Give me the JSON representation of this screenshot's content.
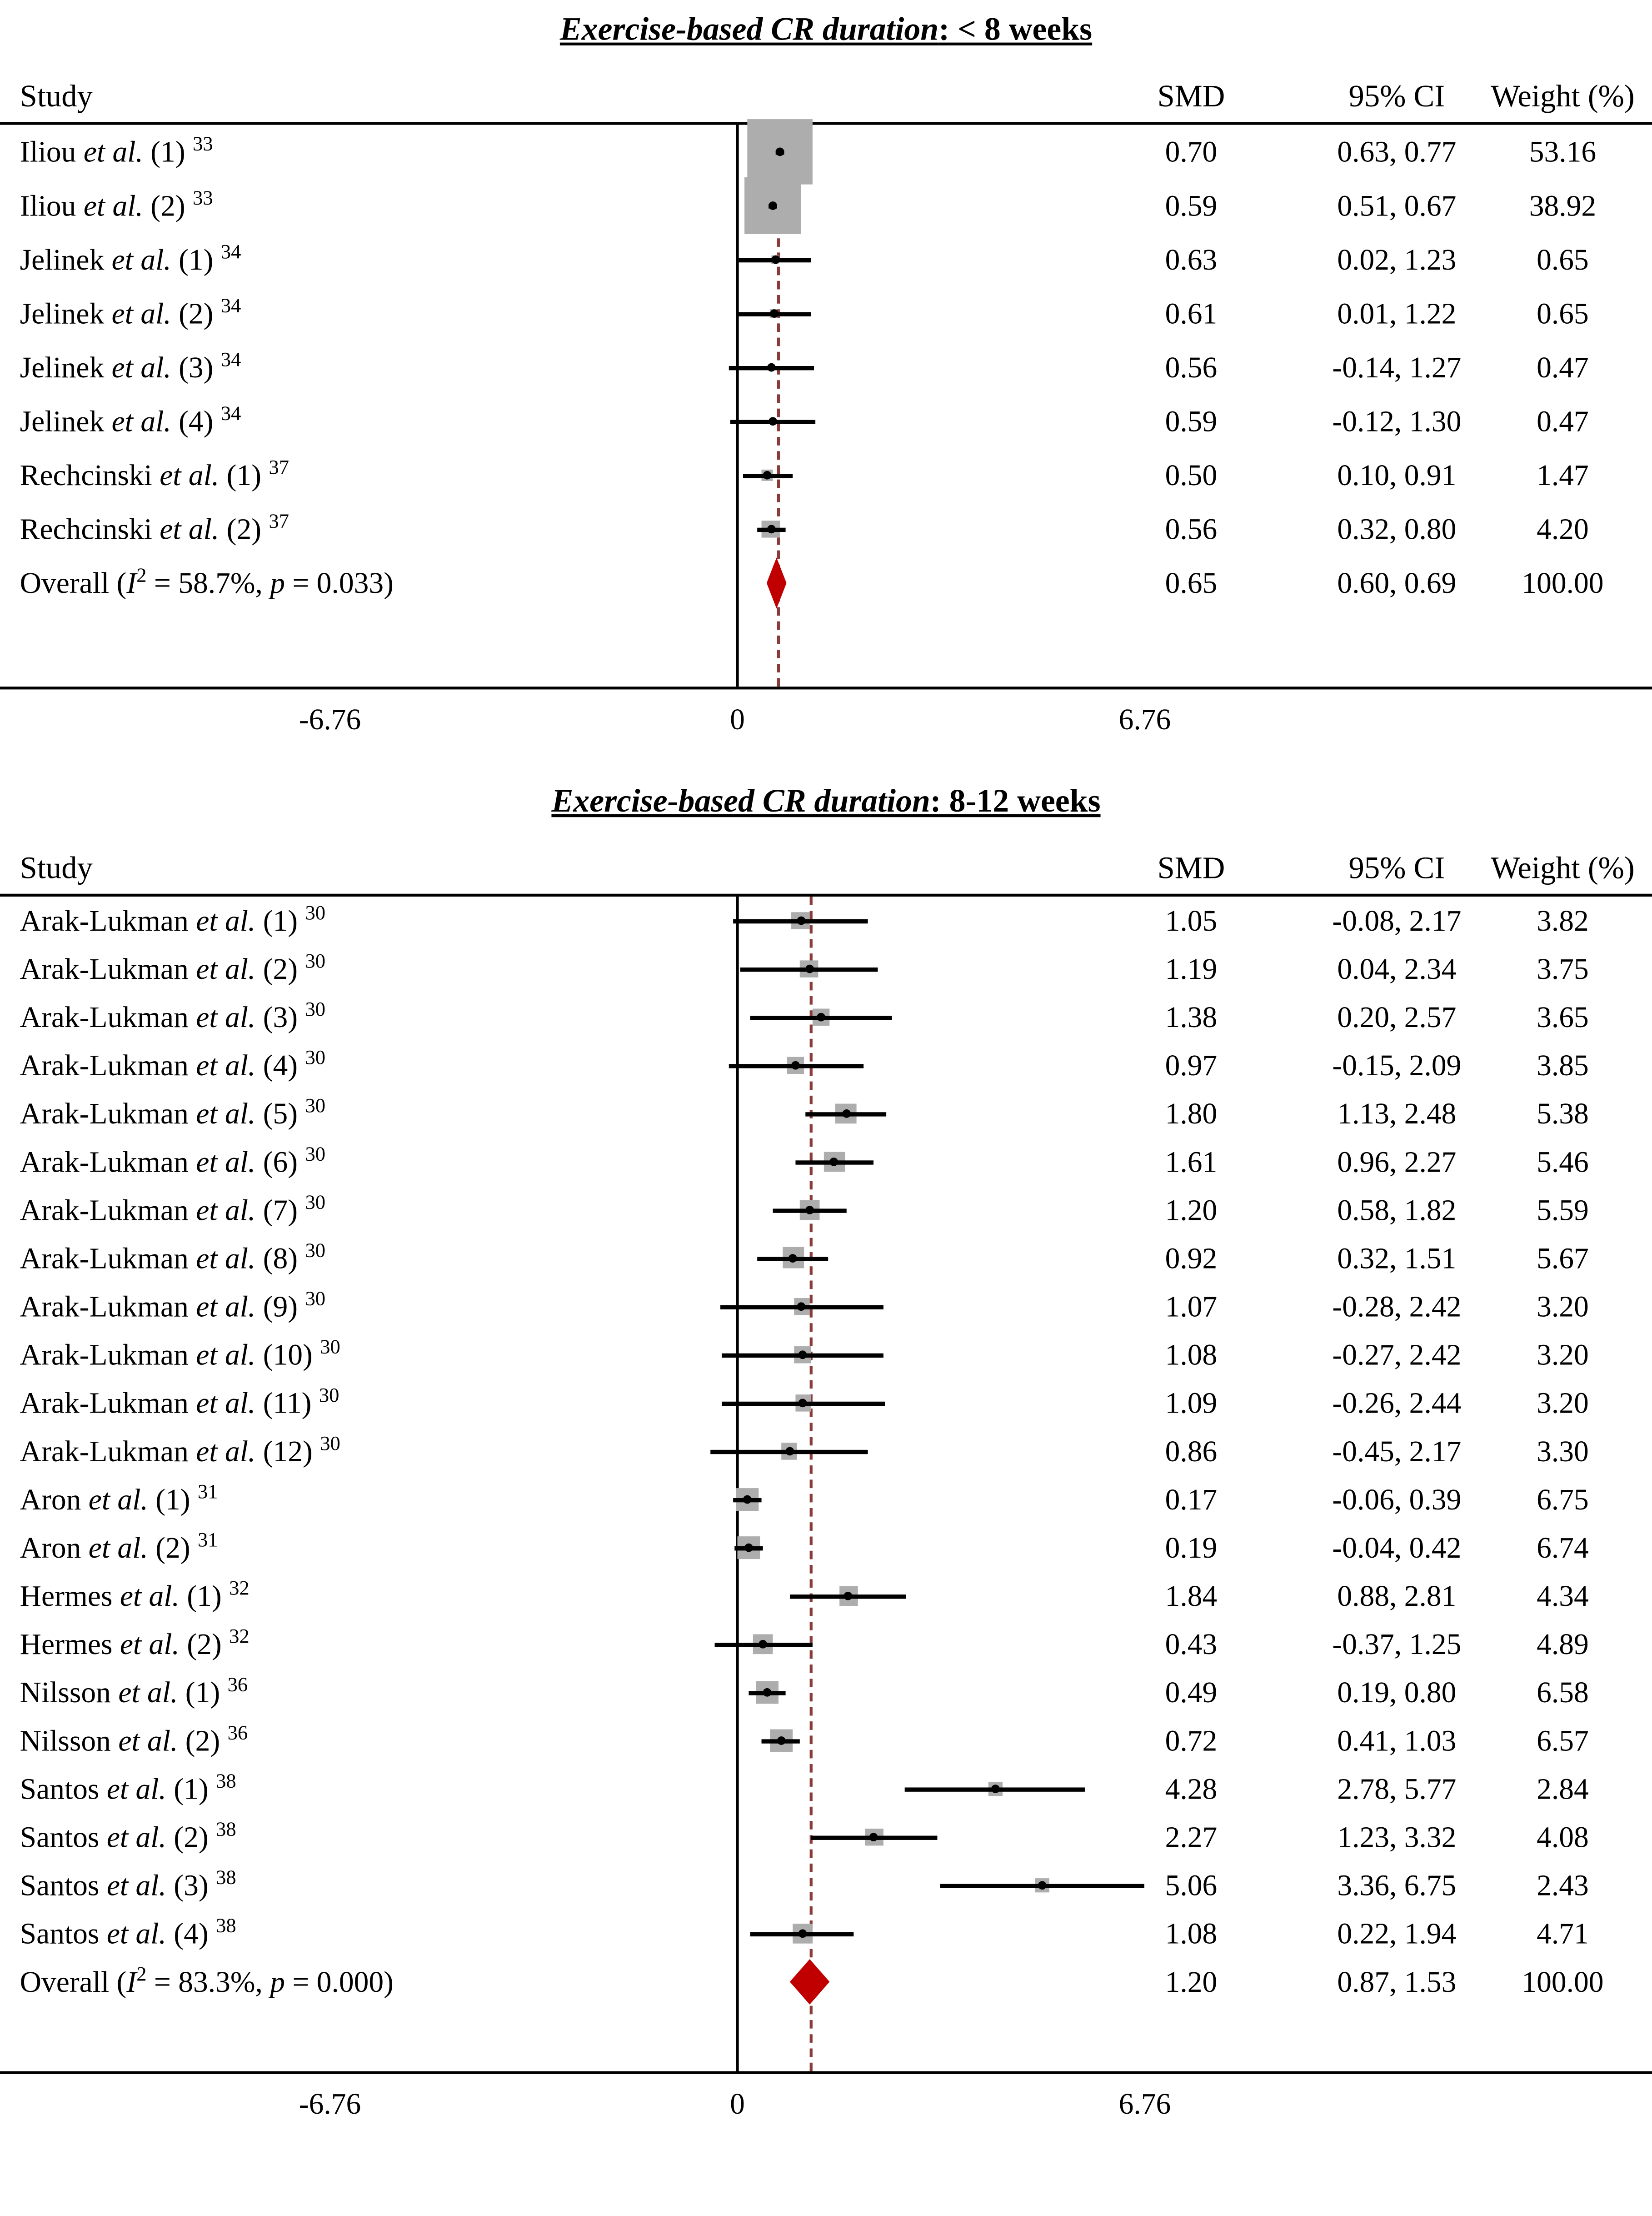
{
  "figure": {
    "background": "#ffffff",
    "marker_box_color": "#adadad",
    "ci_line_color": "#000000",
    "zero_line_color": "#000000",
    "overall_dashed_line_color": "#8b3a3a",
    "diamond_color": "#c00000"
  },
  "chart_data": [
    {
      "type": "forest",
      "title_em": "Exercise-based CR duration",
      "title_rest": ": < 8 weeks",
      "columns": [
        "Study",
        "SMD",
        "95% CI",
        "Weight (%)"
      ],
      "axis": {
        "tick_values": [
          -6.76,
          0,
          6.76
        ],
        "tick_labels": [
          "-6.76",
          "0",
          "6.76"
        ],
        "xlim": [
          -8.2,
          8.2
        ]
      },
      "rows": [
        {
          "study": "Iliou",
          "arm": "(1)",
          "ref": "33",
          "smd": 0.7,
          "lo": 0.63,
          "hi": 0.77,
          "weight": 53.16
        },
        {
          "study": "Iliou",
          "arm": "(2)",
          "ref": "33",
          "smd": 0.59,
          "lo": 0.51,
          "hi": 0.67,
          "weight": 38.92
        },
        {
          "study": "Jelinek",
          "arm": "(1)",
          "ref": "34",
          "smd": 0.63,
          "lo": 0.02,
          "hi": 1.23,
          "weight": 0.65
        },
        {
          "study": "Jelinek",
          "arm": "(2)",
          "ref": "34",
          "smd": 0.61,
          "lo": 0.01,
          "hi": 1.22,
          "weight": 0.65
        },
        {
          "study": "Jelinek",
          "arm": "(3)",
          "ref": "34",
          "smd": 0.56,
          "lo": -0.14,
          "hi": 1.27,
          "weight": 0.47
        },
        {
          "study": "Jelinek",
          "arm": "(4)",
          "ref": "34",
          "smd": 0.59,
          "lo": -0.12,
          "hi": 1.3,
          "weight": 0.47
        },
        {
          "study": "Rechcinski",
          "arm": "(1)",
          "ref": "37",
          "smd": 0.5,
          "lo": 0.1,
          "hi": 0.91,
          "weight": 1.47
        },
        {
          "study": "Rechcinski",
          "arm": "(2)",
          "ref": "37",
          "smd": 0.56,
          "lo": 0.32,
          "hi": 0.8,
          "weight": 4.2
        }
      ],
      "overall": {
        "i2": "58.7%",
        "p": "0.033",
        "smd": 0.65,
        "lo": 0.6,
        "hi": 0.69,
        "weight": 100.0
      }
    },
    {
      "type": "forest",
      "title_em": "Exercise-based CR duration",
      "title_rest": ": 8-12 weeks",
      "columns": [
        "Study",
        "SMD",
        "95% CI",
        "Weight (%)"
      ],
      "axis": {
        "tick_values": [
          -6.76,
          0,
          6.76
        ],
        "tick_labels": [
          "-6.76",
          "0",
          "6.76"
        ],
        "xlim": [
          -8.2,
          8.2
        ]
      },
      "rows": [
        {
          "study": "Arak-Lukman",
          "arm": "(1)",
          "ref": "30",
          "smd": 1.05,
          "lo": -0.08,
          "hi": 2.17,
          "weight": 3.82
        },
        {
          "study": "Arak-Lukman",
          "arm": "(2)",
          "ref": "30",
          "smd": 1.19,
          "lo": 0.04,
          "hi": 2.34,
          "weight": 3.75
        },
        {
          "study": "Arak-Lukman",
          "arm": "(3)",
          "ref": "30",
          "smd": 1.38,
          "lo": 0.2,
          "hi": 2.57,
          "weight": 3.65
        },
        {
          "study": "Arak-Lukman",
          "arm": "(4)",
          "ref": "30",
          "smd": 0.97,
          "lo": -0.15,
          "hi": 2.09,
          "weight": 3.85
        },
        {
          "study": "Arak-Lukman",
          "arm": "(5)",
          "ref": "30",
          "smd": 1.8,
          "lo": 1.13,
          "hi": 2.48,
          "weight": 5.38
        },
        {
          "study": "Arak-Lukman",
          "arm": "(6)",
          "ref": "30",
          "smd": 1.61,
          "lo": 0.96,
          "hi": 2.27,
          "weight": 5.46
        },
        {
          "study": "Arak-Lukman",
          "arm": "(7)",
          "ref": "30",
          "smd": 1.2,
          "lo": 0.58,
          "hi": 1.82,
          "weight": 5.59
        },
        {
          "study": "Arak-Lukman",
          "arm": "(8)",
          "ref": "30",
          "smd": 0.92,
          "lo": 0.32,
          "hi": 1.51,
          "weight": 5.67
        },
        {
          "study": "Arak-Lukman",
          "arm": "(9)",
          "ref": "30",
          "smd": 1.07,
          "lo": -0.28,
          "hi": 2.42,
          "weight": 3.2
        },
        {
          "study": "Arak-Lukman",
          "arm": "(10)",
          "ref": "30",
          "smd": 1.08,
          "lo": -0.27,
          "hi": 2.42,
          "weight": 3.2
        },
        {
          "study": "Arak-Lukman",
          "arm": "(11)",
          "ref": "30",
          "smd": 1.09,
          "lo": -0.26,
          "hi": 2.44,
          "weight": 3.2
        },
        {
          "study": "Arak-Lukman",
          "arm": "(12)",
          "ref": "30",
          "smd": 0.86,
          "lo": -0.45,
          "hi": 2.17,
          "weight": 3.3
        },
        {
          "study": "Aron",
          "arm": "(1)",
          "ref": "31",
          "smd": 0.17,
          "lo": -0.06,
          "hi": 0.39,
          "weight": 6.75
        },
        {
          "study": "Aron",
          "arm": "(2)",
          "ref": "31",
          "smd": 0.19,
          "lo": -0.04,
          "hi": 0.42,
          "weight": 6.74
        },
        {
          "study": "Hermes",
          "arm": "(1)",
          "ref": "32",
          "smd": 1.84,
          "lo": 0.88,
          "hi": 2.81,
          "weight": 4.34
        },
        {
          "study": "Hermes",
          "arm": "(2)",
          "ref": "32",
          "smd": 0.43,
          "lo": -0.37,
          "hi": 1.25,
          "weight": 4.89
        },
        {
          "study": "Nilsson",
          "arm": "(1)",
          "ref": "36",
          "smd": 0.49,
          "lo": 0.19,
          "hi": 0.8,
          "weight": 6.58
        },
        {
          "study": "Nilsson",
          "arm": "(2)",
          "ref": "36",
          "smd": 0.72,
          "lo": 0.41,
          "hi": 1.03,
          "weight": 6.57
        },
        {
          "study": "Santos",
          "arm": "(1)",
          "ref": "38",
          "smd": 4.28,
          "lo": 2.78,
          "hi": 5.77,
          "weight": 2.84
        },
        {
          "study": "Santos",
          "arm": "(2)",
          "ref": "38",
          "smd": 2.27,
          "lo": 1.23,
          "hi": 3.32,
          "weight": 4.08
        },
        {
          "study": "Santos",
          "arm": "(3)",
          "ref": "38",
          "smd": 5.06,
          "lo": 3.36,
          "hi": 6.75,
          "weight": 2.43
        },
        {
          "study": "Santos",
          "arm": "(4)",
          "ref": "38",
          "smd": 1.08,
          "lo": 0.22,
          "hi": 1.94,
          "weight": 4.71
        }
      ],
      "overall": {
        "i2": "83.3%",
        "p": "0.000",
        "smd": 1.2,
        "lo": 0.87,
        "hi": 1.53,
        "weight": 100.0
      }
    }
  ]
}
